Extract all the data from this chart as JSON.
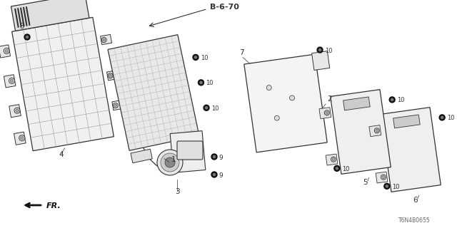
{
  "bg_color": "#ffffff",
  "part_label": "B-6-70",
  "diagram_code": "T6N4B0655",
  "line_color": "#333333",
  "grid_color": "#888888",
  "bolt_fill": "#111111",
  "bolt_inner": "#888888"
}
